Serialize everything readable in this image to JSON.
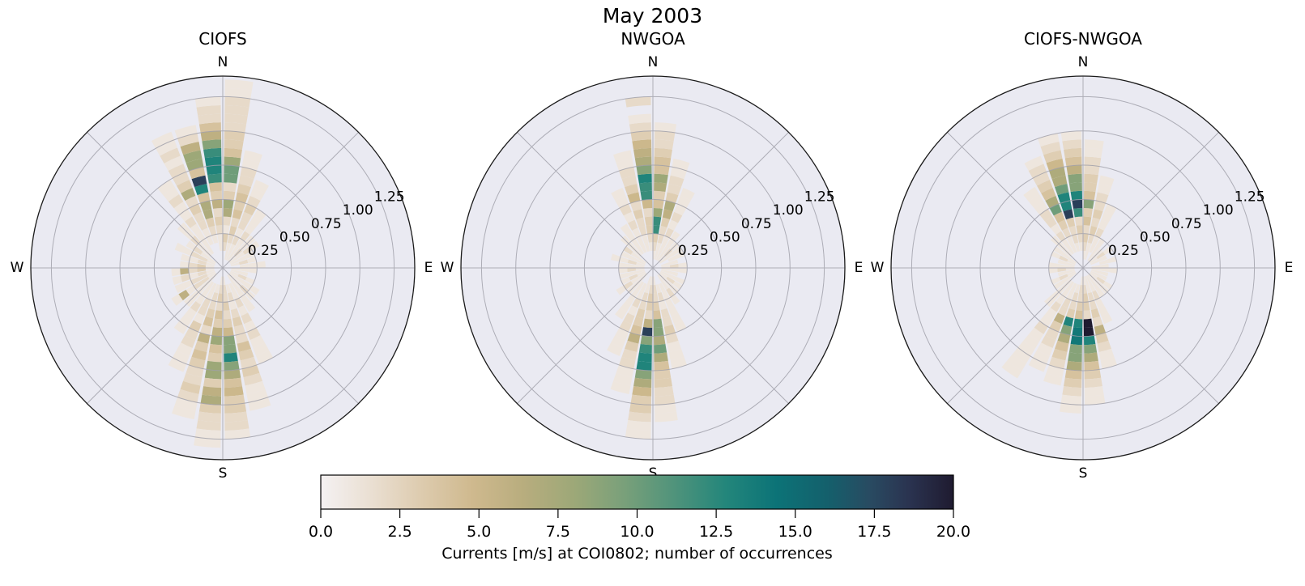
{
  "chart_data": {
    "type": "polar_histogram_rose",
    "suptitle": "May 2003",
    "compass_labels": {
      "n": "N",
      "e": "E",
      "s": "S",
      "w": "W"
    },
    "radial_axis": {
      "tick_labels": [
        "0.25",
        "0.50",
        "0.75",
        "1.00",
        "1.25"
      ],
      "tick_values": [
        0.25,
        0.5,
        0.75,
        1.0,
        1.25
      ],
      "rmax": 1.4,
      "label_angle_deg": 67
    },
    "bins": {
      "direction_bin_deg": 10,
      "speed_bin": 0.0625
    },
    "style": {
      "polar_bg": "#eaeaf2",
      "grid": "#9e9ea8",
      "outline": "#1a1a1a",
      "page_bg": "#ffffff",
      "text": "#000000"
    },
    "colorbar": {
      "label": "Currents [m/s] at COI0802; number of occurrences",
      "tick_labels": [
        "0.0",
        "2.5",
        "5.0",
        "7.5",
        "10.0",
        "12.5",
        "15.0",
        "17.5",
        "20.0"
      ],
      "vmin": 0,
      "vmax": 20,
      "stops": [
        [
          0,
          "#f4f1f2"
        ],
        [
          0.08,
          "#eadfd2"
        ],
        [
          0.16,
          "#ddcbae"
        ],
        [
          0.24,
          "#cfb98e"
        ],
        [
          0.32,
          "#b8ad7e"
        ],
        [
          0.4,
          "#9da878"
        ],
        [
          0.48,
          "#79a07a"
        ],
        [
          0.56,
          "#4f937b"
        ],
        [
          0.64,
          "#23867b"
        ],
        [
          0.72,
          "#0c7377"
        ],
        [
          0.8,
          "#14606c"
        ],
        [
          0.87,
          "#294a61"
        ],
        [
          0.93,
          "#2a3350"
        ],
        [
          1,
          "#1f1b30"
        ]
      ]
    },
    "panels": [
      {
        "title": "CIOFS",
        "occurrences_by_direction": {
          "0": [
            0,
            0,
            2,
            3,
            1,
            2,
            7,
            8,
            3,
            2,
            10,
            10,
            8,
            4,
            3,
            3,
            2,
            2,
            2,
            2,
            1,
            1
          ],
          "10": [
            0,
            1,
            1,
            2,
            3,
            2,
            4,
            3,
            4,
            3,
            2,
            2,
            1,
            1
          ],
          "20": [
            0,
            1,
            1,
            2,
            1,
            2,
            2,
            3,
            2,
            1,
            1
          ],
          "30": [
            0,
            1,
            1,
            1,
            2,
            1,
            1,
            1
          ],
          "40": [
            0,
            1,
            2,
            1,
            1
          ],
          "50": [
            0,
            1,
            1,
            2,
            1
          ],
          "60": [
            0,
            1,
            1,
            1
          ],
          "70": [
            0,
            1,
            2,
            1
          ],
          "80": [
            0,
            0,
            1,
            1,
            1
          ],
          "90": [
            0,
            1,
            1,
            1
          ],
          "100": [
            0,
            1,
            1
          ],
          "110": [
            0,
            1,
            2,
            1
          ],
          "120": [
            0,
            1,
            1,
            1,
            1
          ],
          "130": [
            0,
            1,
            1,
            2,
            1
          ],
          "140": [
            0,
            1,
            1,
            1,
            1,
            1
          ],
          "150": [
            0,
            0,
            1,
            1,
            2,
            1,
            2,
            1,
            2,
            1,
            1,
            1
          ],
          "160": [
            0,
            0,
            1,
            2,
            1,
            2,
            3,
            2,
            2,
            4,
            3,
            2,
            3,
            2,
            1,
            1,
            1
          ],
          "170": [
            0,
            1,
            2,
            2,
            3,
            2,
            3,
            5,
            9,
            9,
            13,
            9,
            7,
            4,
            5,
            3,
            3,
            2,
            2,
            1
          ],
          "180": [
            0,
            1,
            2,
            3,
            2,
            4,
            3,
            6,
            8,
            4,
            3,
            8,
            8,
            3,
            6,
            7,
            3,
            2,
            2,
            1,
            1
          ],
          "190": [
            0,
            0,
            1,
            2,
            2,
            3,
            4,
            2,
            6,
            3,
            4,
            3,
            2,
            2,
            3,
            2,
            1,
            1
          ],
          "200": [
            0,
            0,
            1,
            1,
            2,
            2,
            1,
            3,
            2,
            2,
            1,
            1,
            1
          ],
          "210": [
            0,
            0,
            1,
            1,
            1,
            2,
            1,
            1,
            1
          ],
          "220": [
            0,
            1,
            1,
            1,
            1,
            1
          ],
          "230": [
            0,
            1,
            2,
            2,
            1,
            6,
            1
          ],
          "240": [
            0,
            1,
            2,
            2,
            1,
            1
          ],
          "250": [
            0,
            1,
            2,
            1,
            2,
            1
          ],
          "260": [
            0,
            1,
            3,
            2,
            6,
            1
          ],
          "270": [
            0,
            1,
            3,
            2,
            1
          ],
          "280": [
            0,
            1,
            2,
            1,
            1
          ],
          "290": [
            0,
            1,
            2,
            2,
            1,
            1
          ],
          "300": [
            0,
            1,
            1,
            2,
            1
          ],
          "310": [
            0,
            0,
            1,
            1,
            2,
            1,
            1
          ],
          "320": [
            0,
            0,
            1,
            1,
            1,
            1,
            2,
            1,
            1,
            2,
            1,
            1
          ],
          "330": [
            0,
            0,
            0,
            1,
            1,
            2,
            2,
            3,
            2,
            7,
            3,
            2,
            2,
            1,
            2,
            1,
            1
          ],
          "340": [
            0,
            0,
            0,
            1,
            2,
            3,
            7,
            7,
            4,
            13,
            18,
            4,
            8,
            8,
            6,
            2,
            1
          ],
          "350": [
            0,
            0,
            1,
            1,
            2,
            3,
            2,
            6,
            3,
            4,
            12,
            13,
            13,
            12,
            9,
            6,
            4,
            2,
            2,
            1
          ]
        }
      },
      {
        "title": "NWGOA",
        "occurrences_by_direction": {
          "0": [
            0,
            1,
            2,
            3,
            12,
            12,
            8,
            4,
            3,
            7,
            8,
            4,
            4,
            3,
            2,
            2,
            1
          ],
          "10": [
            0,
            1,
            1,
            2,
            2,
            3,
            6,
            7,
            3,
            2,
            2,
            1,
            1
          ],
          "20": [
            0,
            1,
            1,
            1,
            2,
            1,
            2,
            1,
            1,
            1
          ],
          "30": [
            0,
            1,
            1,
            1,
            1
          ],
          "40": [
            0,
            1,
            2,
            1
          ],
          "50": [
            0,
            1,
            1,
            1
          ],
          "60": [
            0,
            0,
            1,
            1
          ],
          "70": [
            0,
            1,
            1
          ],
          "80": [
            0,
            1,
            2,
            1
          ],
          "90": [
            0,
            1,
            1,
            1
          ],
          "100": [
            0,
            1,
            1
          ],
          "110": [
            0,
            1,
            1,
            1
          ],
          "120": [
            0,
            1,
            2,
            1
          ],
          "130": [
            0,
            1,
            1,
            1
          ],
          "140": [
            0,
            1,
            1,
            2,
            1
          ],
          "150": [
            0,
            0,
            1,
            1,
            1,
            1,
            1,
            1
          ],
          "160": [
            0,
            0,
            1,
            2,
            1,
            2,
            2,
            3,
            2,
            1,
            1,
            1
          ],
          "170": [
            0,
            1,
            2,
            2,
            3,
            4,
            9,
            9,
            7,
            10,
            7,
            4,
            3,
            3,
            2,
            2,
            1,
            1
          ],
          "180": [
            0,
            1,
            2,
            3,
            3,
            2,
            6,
            18,
            9,
            12,
            13,
            13,
            9,
            7,
            5,
            3,
            3,
            2,
            1,
            1
          ],
          "190": [
            0,
            1,
            1,
            2,
            2,
            3,
            3,
            4,
            6,
            3,
            2,
            2,
            1,
            1,
            1
          ],
          "200": [
            0,
            0,
            1,
            1,
            2,
            1,
            2,
            2,
            1,
            1,
            1
          ],
          "210": [
            0,
            0,
            1,
            1,
            1,
            1,
            1
          ],
          "220": [
            0,
            1,
            1,
            1
          ],
          "230": [
            0,
            1,
            1,
            2,
            1
          ],
          "240": [
            0,
            1,
            2,
            1
          ],
          "250": [
            0,
            1,
            1,
            1
          ],
          "260": [
            0,
            1,
            2,
            1
          ],
          "270": [
            0,
            1,
            1,
            1
          ],
          "280": [
            0,
            1,
            2,
            1,
            1
          ],
          "290": [
            0,
            1,
            1,
            1
          ],
          "300": [
            0,
            1,
            1,
            2
          ],
          "310": [
            0,
            0,
            1,
            1,
            1
          ],
          "320": [
            0,
            0,
            1,
            1,
            1,
            1
          ],
          "330": [
            0,
            0,
            1,
            1,
            1,
            2,
            1,
            2,
            1,
            1
          ],
          "340": [
            0,
            0,
            1,
            1,
            2,
            2,
            3,
            2,
            5,
            3,
            2,
            2,
            1,
            1
          ],
          "350": [
            0,
            0,
            1,
            2,
            3,
            3,
            2,
            5,
            12,
            12,
            13,
            9,
            7,
            6,
            5,
            3,
            2,
            1,
            0,
            2
          ]
        }
      },
      {
        "title": "CIOFS-NWGOA",
        "occurrences_by_direction": {
          "0": [
            0,
            1,
            2,
            3,
            2,
            4,
            3,
            9,
            4,
            3,
            3,
            2,
            2,
            1,
            1
          ],
          "10": [
            0,
            1,
            1,
            2,
            3,
            2,
            3,
            2,
            2,
            1,
            1
          ],
          "20": [
            0,
            0,
            1,
            1,
            2,
            1,
            1,
            1
          ],
          "30": [
            0,
            1,
            1,
            1
          ],
          "40": [
            0,
            1,
            1
          ],
          "50": [
            0,
            1,
            2,
            1
          ],
          "60": [
            0,
            1,
            1
          ],
          "70": [
            0,
            0,
            1,
            1
          ],
          "80": [
            0,
            1,
            1
          ],
          "90": [
            0,
            1,
            1,
            1
          ],
          "100": [
            0,
            1,
            1
          ],
          "110": [
            0,
            1,
            1
          ],
          "120": [
            0,
            1,
            2,
            1
          ],
          "130": [
            0,
            1,
            1,
            1
          ],
          "140": [
            0,
            1,
            1,
            1
          ],
          "150": [
            0,
            1,
            1,
            2,
            1,
            1,
            1
          ],
          "160": [
            0,
            1,
            1,
            2,
            2,
            3,
            2,
            6,
            3,
            2,
            1,
            1
          ],
          "170": [
            0,
            1,
            2,
            3,
            3,
            2,
            20,
            20,
            13,
            9,
            7,
            4,
            3,
            2,
            1,
            1
          ],
          "180": [
            0,
            1,
            2,
            2,
            3,
            4,
            13,
            14,
            14,
            9,
            9,
            7,
            4,
            3,
            2,
            1,
            1
          ],
          "190": [
            0,
            0,
            1,
            2,
            2,
            3,
            13,
            9,
            7,
            4,
            3,
            2,
            1,
            1
          ],
          "200": [
            0,
            0,
            1,
            1,
            2,
            2,
            6,
            3,
            2,
            2,
            1,
            1,
            1
          ],
          "210": [
            0,
            0,
            1,
            1,
            1,
            2,
            1,
            1,
            2,
            1,
            1,
            1,
            1,
            1,
            1
          ],
          "220": [
            0,
            0,
            1,
            1,
            1,
            1
          ],
          "230": [
            0,
            1,
            1,
            1
          ],
          "240": [
            0,
            1,
            2,
            1
          ],
          "250": [
            0,
            1,
            1
          ],
          "260": [
            0,
            1,
            2,
            1
          ],
          "270": [
            0,
            1,
            1,
            1
          ],
          "280": [
            0,
            1,
            1
          ],
          "290": [
            0,
            1,
            2,
            1
          ],
          "300": [
            0,
            1,
            1,
            1
          ],
          "310": [
            0,
            0,
            1,
            1,
            1
          ],
          "320": [
            0,
            0,
            1,
            1,
            2,
            1,
            2,
            2,
            1,
            1,
            1
          ],
          "330": [
            0,
            0,
            1,
            1,
            2,
            3,
            4,
            10,
            7,
            4,
            3,
            2,
            2,
            1
          ],
          "340": [
            0,
            0,
            1,
            2,
            2,
            3,
            18,
            13,
            13,
            10,
            7,
            7,
            5,
            3,
            2,
            1
          ],
          "350": [
            0,
            0,
            1,
            2,
            3,
            2,
            12,
            18,
            13,
            9,
            9,
            6,
            4,
            3,
            2,
            1
          ]
        }
      }
    ]
  }
}
